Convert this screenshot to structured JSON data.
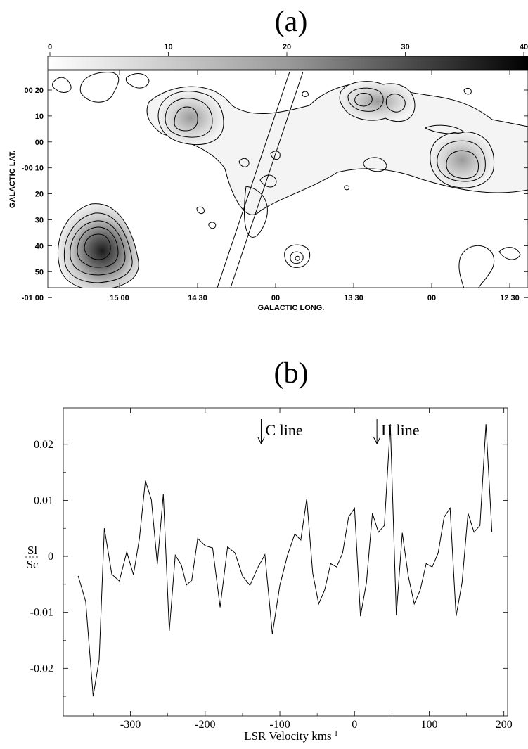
{
  "panel_a": {
    "label": "(a)",
    "colorbar_ticks": [
      "0",
      "10",
      "20",
      "30",
      "40"
    ],
    "y_axis_label": "GALACTIC LAT.",
    "x_axis_label": "GALACTIC LONG.",
    "y_ticks": [
      "00 20",
      "10",
      "00",
      "-00 10",
      "20",
      "30",
      "40",
      "50",
      "-01 00"
    ],
    "x_ticks": [
      "15 00",
      "14 30",
      "00",
      "13 30",
      "00",
      "12 30"
    ]
  },
  "panel_b": {
    "label": "(b)",
    "ylabel_num": "Sl",
    "ylabel_den": "Sc",
    "xlabel": "LSR Velocity  kms",
    "xlabel_sup": "-1",
    "annotations": [
      {
        "text": "C line",
        "x": -125
      },
      {
        "text": "H line",
        "x": 30
      }
    ]
  },
  "chart_data": [
    {
      "type": "heatmap",
      "title": "(a)",
      "xlabel": "GALACTIC LONG.",
      "ylabel": "GALACTIC LAT.",
      "colorbar_range": [
        0,
        45
      ],
      "colormap": "white-to-black grayscale",
      "contours": true
    },
    {
      "type": "line",
      "title": "(b)",
      "xlabel": "LSR Velocity kms-1",
      "ylabel": "Sl/Sc",
      "xlim": [
        -390,
        205
      ],
      "ylim": [
        -0.0285,
        0.0265
      ],
      "xticks": [
        -300,
        -200,
        -100,
        0,
        100,
        200
      ],
      "yticks": [
        -0.02,
        -0.01,
        0,
        0.01,
        0.02
      ],
      "ytick_labels": [
        "-0.02",
        "-0.01",
        "0",
        "0.01",
        "0.02"
      ],
      "x": [
        -370,
        -360,
        -350,
        -342,
        -335,
        -325,
        -315,
        -305,
        -296,
        -288,
        -280,
        -272,
        -264,
        -256,
        -248,
        -240,
        -232,
        -225,
        -218,
        -210,
        -200,
        -190,
        -180,
        -170,
        -160,
        -150,
        -140,
        -130,
        -120,
        -110,
        -100,
        -90,
        -80,
        -72,
        -64,
        -56,
        -48,
        -40,
        -32,
        -24,
        -16,
        -8,
        0,
        8,
        16,
        24,
        32,
        40,
        48,
        56,
        64,
        72,
        80,
        88,
        96,
        104,
        112,
        120,
        128,
        136,
        144,
        152,
        160,
        168,
        176,
        184
      ],
      "y": [
        -0.0035,
        -0.0081,
        -0.025,
        -0.0185,
        0.005,
        -0.0032,
        -0.0044,
        0.0008,
        -0.0033,
        0.0032,
        0.0135,
        0.0101,
        -0.0014,
        0.0111,
        -0.0133,
        0.0002,
        -0.0015,
        -0.0051,
        -0.0043,
        0.0032,
        0.0019,
        0.0015,
        -0.0091,
        0.0017,
        0.0006,
        -0.0035,
        -0.0052,
        -0.0021,
        0.0003,
        -0.0139,
        -0.0052,
        0.0001,
        0.004,
        0.0029,
        0.0103,
        -0.003,
        -0.0085,
        -0.006,
        -0.0013,
        -0.0019,
        0.0006,
        0.007,
        0.0086,
        -0.0107,
        -0.0047,
        0.0077,
        0.0043,
        0.0055,
        0.0236,
        -0.0105,
        0.0042,
        -0.0035,
        -0.0085,
        -0.006,
        -0.0013,
        -0.0019,
        0.0006,
        0.007,
        0.0086,
        -0.0107,
        -0.0047,
        0.0077,
        0.0043,
        0.0055,
        0.0236,
        0.0043
      ]
    }
  ]
}
